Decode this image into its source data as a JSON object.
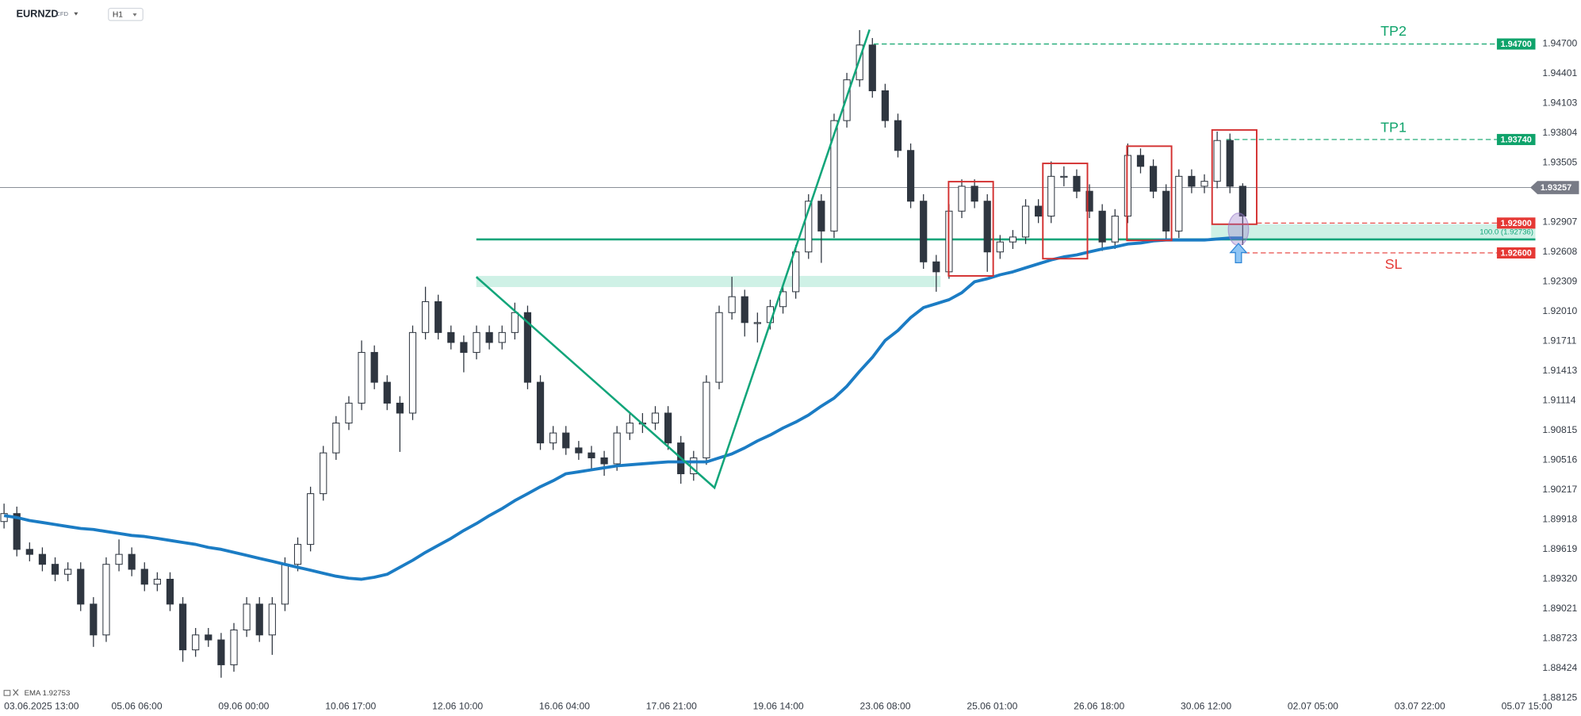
{
  "chart_data": {
    "type": "candlestick",
    "title": "EURNZD",
    "instrument_type": "CFD",
    "timeframe": "H1",
    "ylim": [
      1.8808,
      1.9514
    ],
    "yticks": [
      {
        "value": 1.947,
        "label": "1.94700"
      },
      1.94401,
      1.94103,
      1.93804,
      1.93505,
      1.92907,
      1.92608,
      1.92309,
      {
        "value": 1.9201,
        "label": "1.92010"
      },
      1.91711,
      1.91413,
      1.91114,
      1.90815,
      1.90516,
      1.90217,
      1.89918,
      1.89619,
      {
        "value": 1.8932,
        "label": "1.89320"
      },
      1.89021,
      1.88723,
      1.88424,
      1.88125
    ],
    "x_labels": [
      "03.06.2025 13:00",
      "05.06 06:00",
      "09.06 00:00",
      "10.06 17:00",
      "12.06 10:00",
      "16.06 04:00",
      "17.06 21:00",
      "19.06 14:00",
      "23.06 08:00",
      "25.06 01:00",
      "26.06 18:00",
      "30.06 12:00",
      "02.07 05:00",
      "03.07 22:00",
      "05.07 15:00"
    ],
    "open": [
      1.899,
      1.8998,
      1.8962,
      1.8957,
      1.8947,
      1.8937,
      1.8942,
      1.8907,
      1.8876,
      1.8947,
      1.8957,
      1.8942,
      1.8927,
      1.8932,
      1.8907,
      1.8861,
      1.8876,
      1.8871,
      1.8846,
      1.8881,
      1.8907,
      1.8876,
      1.8907,
      1.8947,
      1.8967,
      1.9018,
      1.9059,
      1.9089,
      1.9109,
      1.916,
      1.913,
      1.9109,
      1.9099,
      1.918,
      1.9211,
      1.918,
      1.917,
      1.916,
      1.918,
      1.917,
      1.918,
      1.92,
      1.913,
      1.9069,
      1.9079,
      1.9064,
      1.9059,
      1.9054,
      1.9048,
      1.9079,
      1.9089,
      1.9089,
      1.9099,
      1.9069,
      1.9038,
      1.9054,
      1.913,
      1.92,
      1.9216,
      1.919,
      1.919,
      1.9206,
      1.9221,
      1.9261,
      1.9312,
      1.9282,
      1.9393,
      1.9434,
      1.9469,
      1.9423,
      1.9393,
      1.9363,
      1.9312,
      1.9251,
      1.9241,
      1.9302,
      1.9327,
      1.9312,
      1.9261,
      1.9271,
      1.9276,
      1.9307,
      1.9297,
      1.9337,
      1.9337,
      1.9322,
      1.9302,
      1.9271,
      1.9297,
      1.9358,
      1.9347,
      1.9322,
      1.9282,
      1.9337,
      1.9327,
      1.9332,
      1.9373,
      1.9327
    ],
    "high": [
      1.9008,
      1.9005,
      1.8969,
      1.8964,
      1.8954,
      1.8949,
      1.8949,
      1.8914,
      1.8954,
      1.8972,
      1.8964,
      1.8949,
      1.8939,
      1.8939,
      1.8914,
      1.8883,
      1.8883,
      1.8878,
      1.8888,
      1.8914,
      1.8914,
      1.8914,
      1.8954,
      1.8974,
      1.9025,
      1.9066,
      1.9096,
      1.9116,
      1.9172,
      1.9167,
      1.9137,
      1.9116,
      1.9187,
      1.9226,
      1.9218,
      1.9187,
      1.9177,
      1.9187,
      1.9187,
      1.9187,
      1.921,
      1.9207,
      1.9137,
      1.9086,
      1.9086,
      1.9071,
      1.9066,
      1.9061,
      1.9086,
      1.91,
      1.9099,
      1.9106,
      1.9106,
      1.9076,
      1.9061,
      1.9137,
      1.9207,
      1.9236,
      1.9223,
      1.92,
      1.9213,
      1.9228,
      1.9268,
      1.9319,
      1.9319,
      1.94,
      1.9441,
      1.9484,
      1.9476,
      1.943,
      1.94,
      1.937,
      1.9319,
      1.9258,
      1.9309,
      1.9334,
      1.9334,
      1.9319,
      1.9278,
      1.9283,
      1.9314,
      1.9314,
      1.9352,
      1.9347,
      1.9344,
      1.9329,
      1.9309,
      1.9304,
      1.937,
      1.9365,
      1.9354,
      1.9329,
      1.9344,
      1.9344,
      1.9339,
      1.9382,
      1.938,
      1.933
    ],
    "low": [
      1.8983,
      1.8955,
      1.895,
      1.894,
      1.893,
      1.893,
      1.89,
      1.8864,
      1.8869,
      1.894,
      1.8935,
      1.892,
      1.892,
      1.89,
      1.8849,
      1.8854,
      1.8864,
      1.8833,
      1.8839,
      1.8874,
      1.8869,
      1.8856,
      1.89,
      1.894,
      1.896,
      1.9011,
      1.9052,
      1.9082,
      1.9102,
      1.9123,
      1.9102,
      1.906,
      1.9092,
      1.9173,
      1.9173,
      1.9163,
      1.914,
      1.9153,
      1.9163,
      1.9163,
      1.9173,
      1.9123,
      1.9062,
      1.9062,
      1.9057,
      1.9052,
      1.9042,
      1.9036,
      1.9041,
      1.9072,
      1.9079,
      1.9082,
      1.9062,
      1.9028,
      1.9031,
      1.9047,
      1.9123,
      1.9193,
      1.9176,
      1.917,
      1.9183,
      1.9199,
      1.9214,
      1.9254,
      1.925,
      1.9275,
      1.9386,
      1.9427,
      1.9416,
      1.9386,
      1.9356,
      1.9305,
      1.9244,
      1.9221,
      1.9234,
      1.9295,
      1.9305,
      1.9241,
      1.9254,
      1.9264,
      1.9269,
      1.929,
      1.929,
      1.9327,
      1.9315,
      1.9295,
      1.9262,
      1.9264,
      1.929,
      1.934,
      1.9315,
      1.9272,
      1.9275,
      1.932,
      1.932,
      1.9325,
      1.932,
      1.9268
    ],
    "close": [
      1.8998,
      1.8962,
      1.8957,
      1.8947,
      1.8937,
      1.8942,
      1.8907,
      1.8876,
      1.8947,
      1.8957,
      1.8942,
      1.8927,
      1.8932,
      1.8907,
      1.8861,
      1.8876,
      1.8871,
      1.8846,
      1.8881,
      1.8907,
      1.8876,
      1.8907,
      1.8947,
      1.8967,
      1.9018,
      1.9059,
      1.9089,
      1.9109,
      1.916,
      1.913,
      1.9109,
      1.9099,
      1.918,
      1.9211,
      1.918,
      1.917,
      1.916,
      1.918,
      1.917,
      1.918,
      1.92,
      1.913,
      1.9069,
      1.9079,
      1.9064,
      1.9059,
      1.9054,
      1.9048,
      1.9079,
      1.9089,
      1.9089,
      1.9099,
      1.9069,
      1.9038,
      1.9054,
      1.913,
      1.92,
      1.9216,
      1.919,
      1.919,
      1.9206,
      1.9221,
      1.9261,
      1.9312,
      1.9282,
      1.9393,
      1.9434,
      1.9469,
      1.9423,
      1.9393,
      1.9363,
      1.9312,
      1.9251,
      1.9241,
      1.9302,
      1.9327,
      1.9312,
      1.9261,
      1.9271,
      1.9276,
      1.9307,
      1.9297,
      1.9337,
      1.9337,
      1.9322,
      1.9302,
      1.9271,
      1.9297,
      1.9358,
      1.9347,
      1.9322,
      1.9282,
      1.9337,
      1.9327,
      1.9332,
      1.9373,
      1.9327,
      1.9297
    ],
    "colors": {
      "up": "#ffffff",
      "down": "#2f3640",
      "outline": "#2f3640"
    },
    "ema": {
      "name": "EMA",
      "last": 1.92753,
      "color": "#1b7cc4",
      "values": [
        1.8996,
        1.8994,
        1.8991,
        1.8989,
        1.8987,
        1.8985,
        1.8983,
        1.8982,
        1.898,
        1.8978,
        1.8976,
        1.8975,
        1.8973,
        1.8971,
        1.8969,
        1.8967,
        1.8964,
        1.8962,
        1.8959,
        1.8956,
        1.8953,
        1.895,
        1.8947,
        1.8944,
        1.8941,
        1.8938,
        1.8935,
        1.8933,
        1.8932,
        1.8934,
        1.8937,
        1.8944,
        1.8951,
        1.8959,
        1.8966,
        1.8973,
        1.8981,
        1.8988,
        1.8996,
        1.9003,
        1.9011,
        1.9018,
        1.9025,
        1.9031,
        1.9038,
        1.904,
        1.9042,
        1.9044,
        1.9046,
        1.9047,
        1.9048,
        1.9049,
        1.905,
        1.905,
        1.905,
        1.905,
        1.9054,
        1.9058,
        1.9064,
        1.9071,
        1.9077,
        1.9084,
        1.909,
        1.9097,
        1.9106,
        1.9114,
        1.9126,
        1.9141,
        1.9155,
        1.9172,
        1.9182,
        1.9195,
        1.9205,
        1.9209,
        1.9213,
        1.922,
        1.9231,
        1.9234,
        1.9238,
        1.9241,
        1.9245,
        1.9249,
        1.9253,
        1.9256,
        1.9258,
        1.9261,
        1.9264,
        1.9266,
        1.9269,
        1.927,
        1.9272,
        1.9273,
        1.9273,
        1.9273,
        1.9273,
        1.9274,
        1.9275,
        1.9275
      ]
    },
    "levels": [
      {
        "name": "TP2",
        "price": 1.947,
        "label": "1.94700",
        "color": "#0fa36b"
      },
      {
        "name": "TP1",
        "price": 1.9374,
        "label": "1.93740",
        "color": "#0fa36b"
      },
      {
        "price": 1.929,
        "label": "1.92900",
        "color": "#e53935"
      },
      {
        "name": "SL",
        "price": 1.926,
        "label": "1.92600",
        "color": "#e53935"
      }
    ],
    "current_price": 1.93257,
    "fibo": {
      "label": "100.0 (1.92736)",
      "price": 1.92736,
      "color": "#12a57a"
    }
  }
}
